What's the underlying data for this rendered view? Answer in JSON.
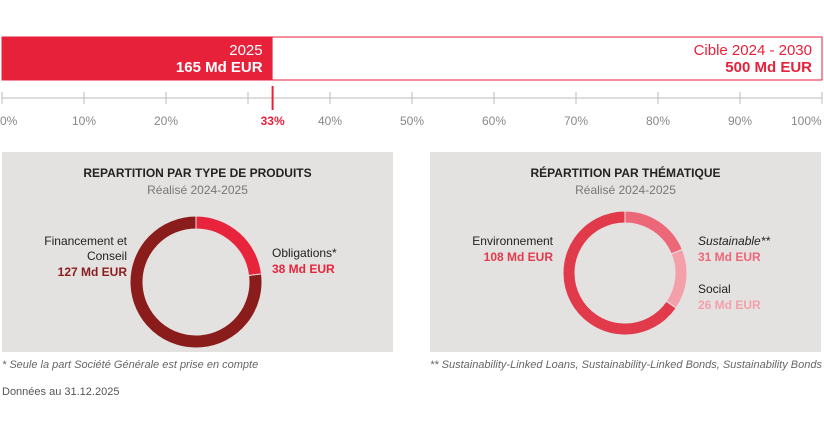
{
  "chart_data": [
    {
      "type": "progress",
      "categories": [
        "2025",
        "Cible 2024 - 2030"
      ],
      "values": [
        165,
        500
      ],
      "value_labels": [
        "165 Md EUR",
        "500 Md EUR"
      ],
      "color": "#e8213b",
      "xlim": [
        0,
        100
      ],
      "xticks": [
        {
          "value": 0,
          "label": "0%"
        },
        {
          "value": 10,
          "label": "10%"
        },
        {
          "value": 20,
          "label": "20%"
        },
        {
          "value": 30,
          "label": ""
        },
        {
          "value": 40,
          "label": "40%"
        },
        {
          "value": 50,
          "label": "50%"
        },
        {
          "value": 60,
          "label": "60%"
        },
        {
          "value": 70,
          "label": "70%"
        },
        {
          "value": 80,
          "label": "80%"
        },
        {
          "value": 90,
          "label": "90%"
        },
        {
          "value": 100,
          "label": "100%"
        }
      ],
      "marker": {
        "value": 33,
        "label": "33%"
      }
    },
    {
      "type": "donut",
      "title": "REPARTITION PAR TYPE DE PRODUITS",
      "subtitle": "Réalisé 2024-2025",
      "categories": [
        "Financement et Conseil",
        "Obligations*"
      ],
      "values": [
        127,
        38
      ],
      "value_labels": [
        "127 Md EUR",
        "38 Md EUR"
      ],
      "colors": [
        "#8b1c1c",
        "#e8243c"
      ],
      "footnote": "* Seule la part Société Générale est prise en compte"
    },
    {
      "type": "donut",
      "title": "RÉPARTITION PAR THÉMATIQUE",
      "subtitle": "Réalisé 2024-2025",
      "categories": [
        "Environnement",
        "Sustainable**",
        "Social"
      ],
      "values": [
        108,
        31,
        26
      ],
      "value_labels": [
        "108 Md EUR",
        "31 Md EUR",
        "26 Md EUR"
      ],
      "colors": [
        "#e13a4b",
        "#ec6778",
        "#f4a0aa"
      ],
      "footnote": "** Sustainability-Linked Loans, Sustainability-Linked Bonds, Sustainability Bonds"
    }
  ],
  "note": "Données au 31.12.2025"
}
